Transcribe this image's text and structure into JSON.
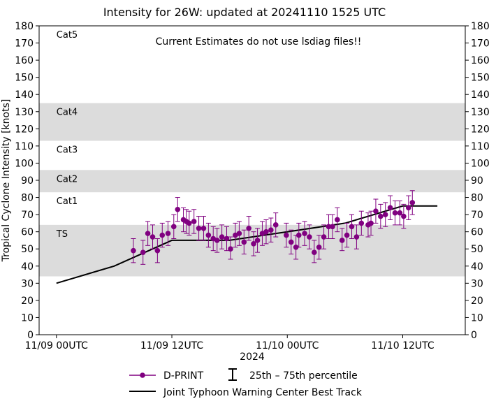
{
  "chart_data": {
    "type": "scatter",
    "title": "Intensity for 26W: updated at 20241110 1525 UTC",
    "annotation": "Current Estimates do not use lsdiag files!!",
    "xlabel": "2024",
    "ylabel": "Tropical Cyclone Intensity [knots]",
    "x_unit": "hours since 11/09 00UTC",
    "xlim": [
      -1.8,
      42.5
    ],
    "ylim": [
      0,
      180
    ],
    "yticks": [
      0,
      10,
      20,
      30,
      40,
      50,
      60,
      70,
      80,
      90,
      100,
      110,
      120,
      130,
      140,
      150,
      160,
      170,
      180
    ],
    "xticks": [
      {
        "value": 0,
        "label": "11/09 00UTC"
      },
      {
        "value": 12,
        "label": "11/09 12UTC"
      },
      {
        "value": 24,
        "label": "11/10 00UTC"
      },
      {
        "value": 36,
        "label": "11/10 12UTC"
      }
    ],
    "category_bands": [
      {
        "label": "TS",
        "low": 34,
        "high": 64,
        "shaded": true
      },
      {
        "label": "Cat1",
        "low": 64,
        "high": 83,
        "shaded": false
      },
      {
        "label": "Cat2",
        "low": 83,
        "high": 96,
        "shaded": true
      },
      {
        "label": "Cat3",
        "low": 96,
        "high": 113,
        "shaded": false
      },
      {
        "label": "Cat4",
        "low": 113,
        "high": 135,
        "shaded": true
      },
      {
        "label": "Cat5",
        "low": 135,
        "high": 180,
        "shaded": false
      }
    ],
    "band_color": "#dcdcdc",
    "series": [
      {
        "name": "D-PRINT",
        "color": "#800080",
        "points": [
          [
            8.0,
            49,
            42,
            56
          ],
          [
            9.0,
            48,
            41,
            55
          ],
          [
            9.5,
            59,
            52,
            66
          ],
          [
            10.0,
            57,
            50,
            64
          ],
          [
            10.5,
            49,
            42,
            56
          ],
          [
            11.0,
            58,
            51,
            65
          ],
          [
            11.6,
            59,
            52,
            66
          ],
          [
            12.2,
            63,
            56,
            70
          ],
          [
            12.6,
            73,
            66,
            80
          ],
          [
            13.2,
            67,
            60,
            74
          ],
          [
            13.5,
            66,
            59,
            73
          ],
          [
            13.8,
            65,
            58,
            72
          ],
          [
            14.3,
            66,
            59,
            73
          ],
          [
            14.8,
            62,
            55,
            69
          ],
          [
            15.3,
            62,
            55,
            69
          ],
          [
            15.8,
            58,
            51,
            65
          ],
          [
            16.3,
            56,
            49,
            63
          ],
          [
            16.7,
            55,
            48,
            62
          ],
          [
            17.2,
            57,
            50,
            64
          ],
          [
            17.7,
            56,
            49,
            63
          ],
          [
            18.1,
            50,
            44,
            57
          ],
          [
            18.6,
            58,
            51,
            65
          ],
          [
            19.0,
            59,
            52,
            66
          ],
          [
            19.5,
            54,
            47,
            61
          ],
          [
            20.0,
            62,
            55,
            69
          ],
          [
            20.5,
            53,
            46,
            60
          ],
          [
            20.9,
            55,
            48,
            62
          ],
          [
            21.4,
            59,
            52,
            66
          ],
          [
            21.8,
            60,
            53,
            67
          ],
          [
            22.3,
            61,
            54,
            68
          ],
          [
            22.8,
            64,
            57,
            71
          ],
          [
            23.9,
            58,
            51,
            65
          ],
          [
            24.4,
            54,
            47,
            61
          ],
          [
            24.9,
            51,
            44,
            58
          ],
          [
            25.2,
            58,
            51,
            65
          ],
          [
            25.8,
            59,
            52,
            66
          ],
          [
            26.3,
            57,
            50,
            64
          ],
          [
            26.8,
            48,
            42,
            55
          ],
          [
            27.3,
            51,
            44,
            58
          ],
          [
            27.8,
            57,
            50,
            64
          ],
          [
            28.3,
            63,
            56,
            70
          ],
          [
            28.7,
            63,
            56,
            70
          ],
          [
            29.2,
            67,
            60,
            74
          ],
          [
            29.7,
            55,
            49,
            62
          ],
          [
            30.2,
            58,
            51,
            65
          ],
          [
            30.7,
            63,
            56,
            70
          ],
          [
            31.2,
            57,
            50,
            64
          ],
          [
            31.7,
            65,
            58,
            72
          ],
          [
            32.4,
            64,
            57,
            71
          ],
          [
            32.7,
            65,
            58,
            72
          ],
          [
            33.2,
            72,
            65,
            79
          ],
          [
            33.7,
            69,
            62,
            76
          ],
          [
            34.2,
            70,
            63,
            77
          ],
          [
            34.7,
            74,
            67,
            81
          ],
          [
            35.2,
            71,
            64,
            78
          ],
          [
            35.7,
            71,
            64,
            78
          ],
          [
            36.1,
            69,
            62,
            76
          ],
          [
            36.6,
            74,
            67,
            81
          ],
          [
            37.0,
            77,
            70,
            84
          ]
        ]
      },
      {
        "name": "Joint Typhoon Warning Center Best Track",
        "color": "#000000",
        "points": [
          [
            0,
            30
          ],
          [
            6,
            40
          ],
          [
            12,
            55
          ],
          [
            18,
            55
          ],
          [
            24,
            60
          ],
          [
            30,
            65
          ],
          [
            36,
            75
          ],
          [
            39.6,
            75
          ]
        ]
      }
    ],
    "legend": {
      "placement": "bottom-center",
      "dprint_label": "D-PRINT",
      "percentile_label": "25th – 75th percentile",
      "best_track_label": "Joint Typhoon Warning Center Best Track"
    }
  }
}
